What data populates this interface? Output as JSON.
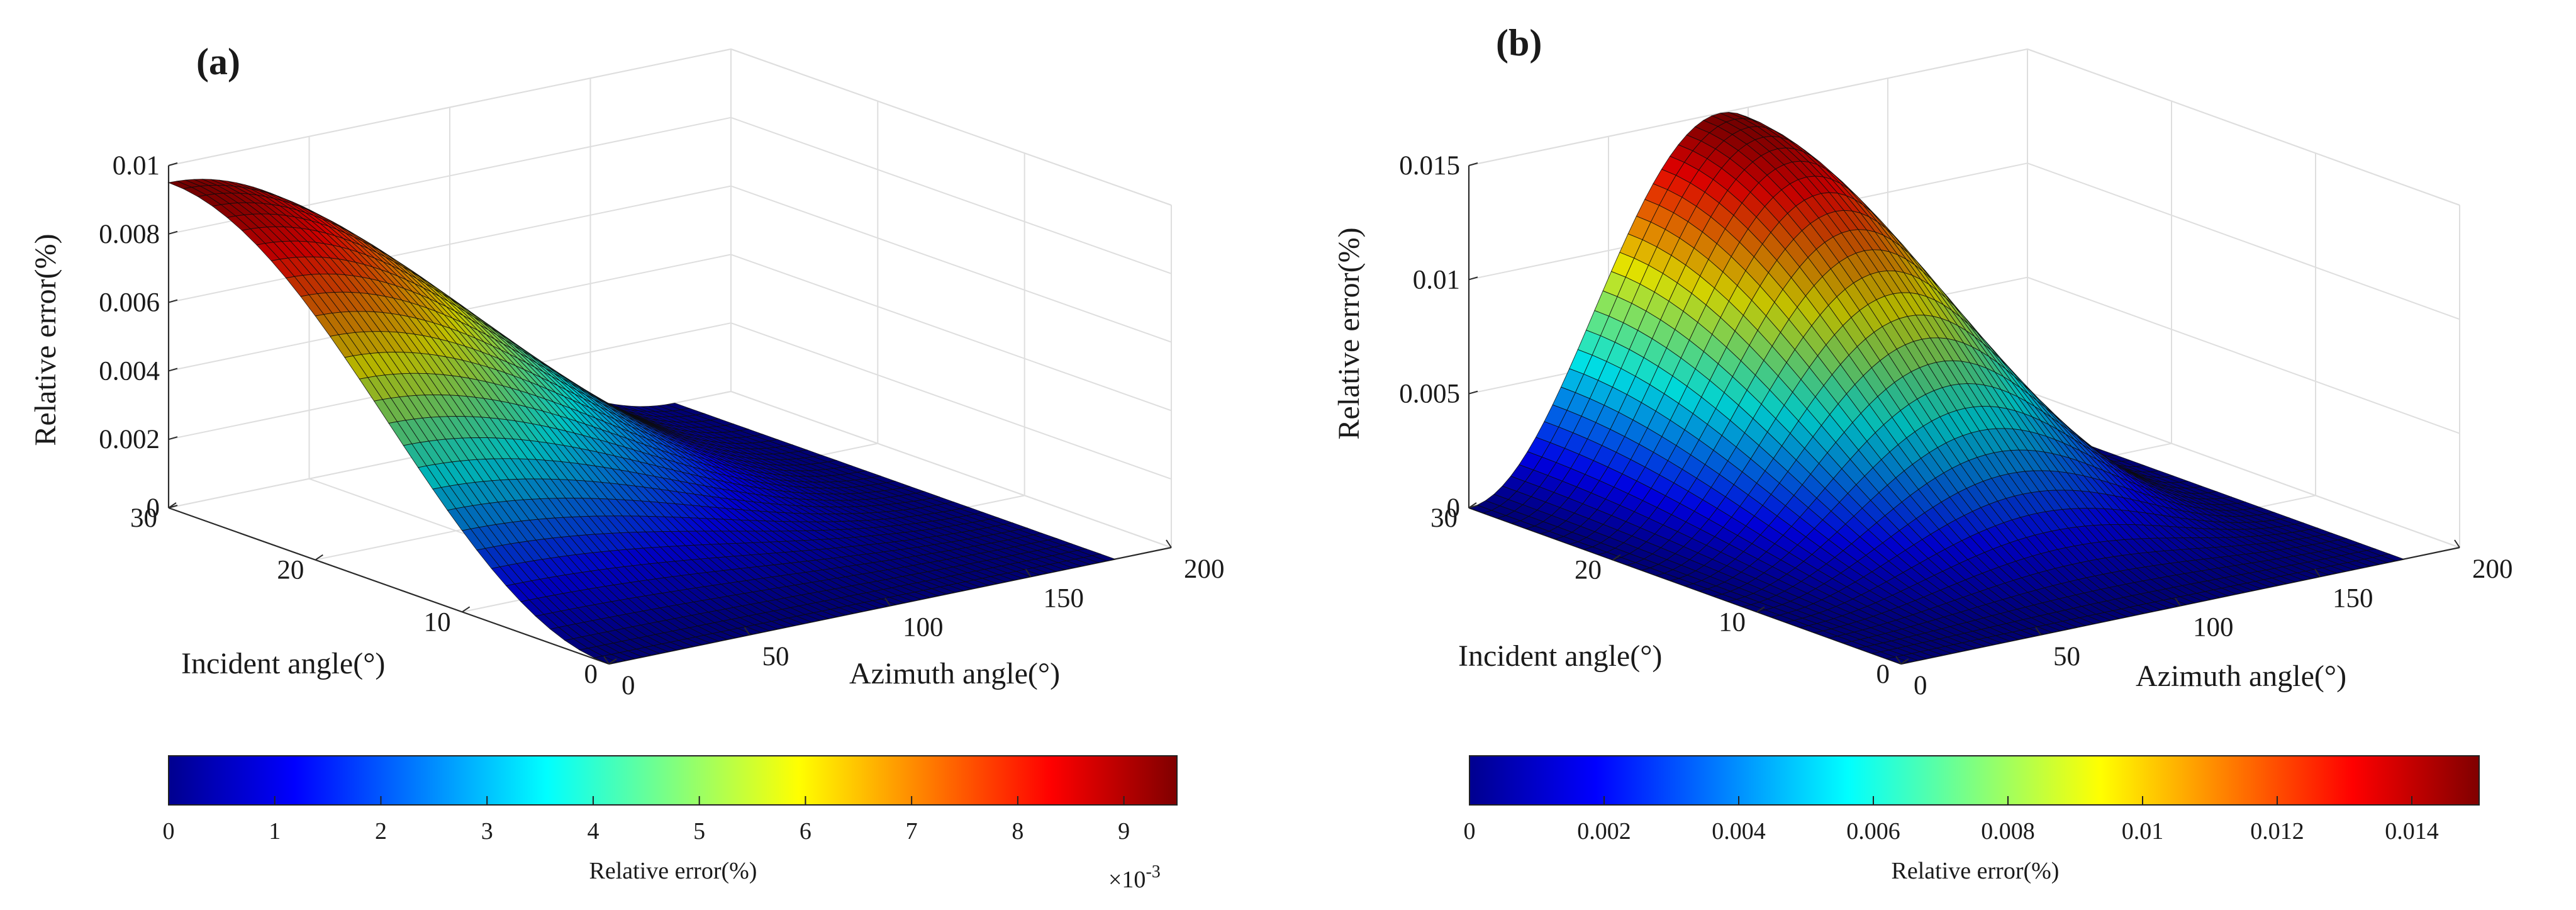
{
  "chart_data": [
    {
      "type": "surface",
      "panel_label": "(a)",
      "xlabel": "Azimuth angle(°)",
      "ylabel": "Incident angle(°)",
      "zlabel": "Relative error(%)",
      "xlim": [
        0,
        200
      ],
      "ylim": [
        0,
        30
      ],
      "zlim": [
        0,
        0.01
      ],
      "x_ticks": [
        "0",
        "50",
        "100",
        "150",
        "200"
      ],
      "y_ticks": [
        "0",
        "10",
        "20",
        "30"
      ],
      "z_ticks": [
        "0",
        "0.002",
        "0.004",
        "0.006",
        "0.008",
        "0.01"
      ],
      "data_x_range": [
        0,
        180
      ],
      "data_y_range": [
        0,
        30
      ],
      "peak": {
        "azimuth": 0,
        "incident": 30,
        "value": 0.0095
      },
      "colormap": "jet",
      "colorbar": {
        "label": "Relative error(%)",
        "range": [
          0,
          0.0095
        ],
        "ticks": [
          "0",
          "1",
          "2",
          "3",
          "4",
          "5",
          "6",
          "7",
          "8",
          "9"
        ],
        "multiplier": "×10",
        "multiplier_exp": "-3"
      }
    },
    {
      "type": "surface",
      "panel_label": "(b)",
      "xlabel": "Azimuth angle(°)",
      "ylabel": "Incident angle(°)",
      "zlabel": "Relative error(%)",
      "xlim": [
        0,
        200
      ],
      "ylim": [
        0,
        30
      ],
      "zlim": [
        0,
        0.015
      ],
      "x_ticks": [
        "0",
        "50",
        "100",
        "150",
        "200"
      ],
      "y_ticks": [
        "0",
        "10",
        "20",
        "30"
      ],
      "z_ticks": [
        "0",
        "0.005",
        "0.01",
        "0.015"
      ],
      "data_x_range": [
        0,
        180
      ],
      "data_y_range": [
        0,
        30
      ],
      "peak": {
        "azimuth": 90,
        "incident": 30,
        "value": 0.015
      },
      "colormap": "jet",
      "colorbar": {
        "label": "Relative error(%)",
        "range": [
          0,
          0.015
        ],
        "ticks": [
          "0",
          "0.002",
          "0.004",
          "0.006",
          "0.008",
          "0.01",
          "0.012",
          "0.014"
        ]
      }
    }
  ]
}
